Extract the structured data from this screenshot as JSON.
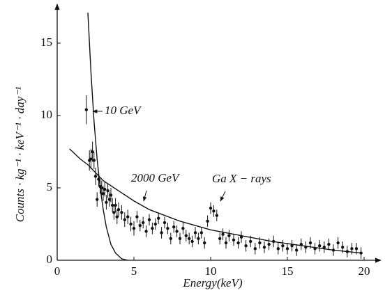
{
  "chart_data": {
    "type": "scatter",
    "x_label": "Energy(keV)",
    "y_label": "Counts · kg⁻¹ · keV⁻¹ · day⁻¹",
    "xlim": [
      0,
      21
    ],
    "ylim": [
      0,
      17.5
    ],
    "xticks": [
      0,
      5,
      10,
      15,
      20
    ],
    "yticks": [
      0,
      5,
      10,
      15
    ],
    "color": "#111111",
    "points": {
      "x": [
        1.9,
        2.1,
        2.2,
        2.3,
        2.4,
        2.5,
        2.6,
        2.7,
        2.8,
        2.9,
        3.0,
        3.1,
        3.2,
        3.3,
        3.4,
        3.5,
        3.6,
        3.7,
        3.8,
        3.9,
        4.0,
        4.2,
        4.4,
        4.6,
        4.8,
        5.0,
        5.2,
        5.4,
        5.6,
        5.8,
        6.0,
        6.2,
        6.4,
        6.6,
        6.8,
        7.0,
        7.2,
        7.4,
        7.6,
        7.8,
        8.0,
        8.2,
        8.4,
        8.6,
        8.8,
        9.0,
        9.2,
        9.4,
        9.6,
        9.8,
        10.0,
        10.2,
        10.4,
        10.6,
        10.8,
        11.0,
        11.2,
        11.5,
        11.8,
        12.0,
        12.3,
        12.6,
        12.9,
        13.2,
        13.5,
        13.8,
        14.1,
        14.4,
        14.7,
        15.0,
        15.3,
        15.6,
        15.9,
        16.2,
        16.5,
        16.8,
        17.1,
        17.4,
        17.7,
        18.0,
        18.3,
        18.6,
        18.9,
        19.2,
        19.5,
        19.8
      ],
      "values": [
        10.4,
        6.9,
        7.0,
        7.5,
        6.9,
        5.8,
        4.2,
        5.6,
        5.1,
        5.0,
        4.6,
        4.9,
        4.0,
        4.8,
        4.2,
        4.5,
        3.8,
        3.3,
        3.8,
        3.0,
        3.5,
        3.3,
        2.8,
        3.0,
        2.5,
        2.2,
        3.0,
        2.4,
        2.6,
        2.0,
        2.8,
        2.2,
        2.5,
        2.9,
        1.9,
        2.6,
        2.2,
        1.5,
        2.3,
        2.0,
        1.5,
        2.2,
        1.7,
        1.5,
        1.3,
        1.9,
        1.5,
        1.9,
        1.2,
        2.7,
        3.6,
        3.4,
        3.1,
        1.5,
        1.8,
        1.2,
        1.7,
        1.4,
        1.2,
        1.6,
        1.0,
        1.3,
        0.8,
        1.2,
        0.9,
        1.1,
        1.3,
        0.8,
        1.0,
        0.8,
        1.0,
        0.7,
        1.1,
        0.9,
        1.2,
        0.8,
        1.0,
        0.9,
        1.1,
        0.7,
        1.2,
        0.9,
        0.6,
        0.8,
        0.8,
        0.5
      ],
      "errors": [
        1.0,
        0.7,
        0.7,
        0.7,
        0.6,
        0.6,
        0.5,
        0.5,
        0.5,
        0.5,
        0.5,
        0.5,
        0.5,
        0.5,
        0.5,
        0.5,
        0.5,
        0.5,
        0.5,
        0.5,
        0.5,
        0.5,
        0.5,
        0.5,
        0.5,
        0.5,
        0.4,
        0.4,
        0.4,
        0.4,
        0.4,
        0.4,
        0.4,
        0.4,
        0.4,
        0.4,
        0.4,
        0.4,
        0.4,
        0.4,
        0.4,
        0.4,
        0.4,
        0.4,
        0.4,
        0.4,
        0.4,
        0.4,
        0.4,
        0.4,
        0.4,
        0.4,
        0.4,
        0.4,
        0.4,
        0.4,
        0.4,
        0.4,
        0.4,
        0.4,
        0.4,
        0.4,
        0.4,
        0.4,
        0.4,
        0.4,
        0.4,
        0.4,
        0.4,
        0.4,
        0.4,
        0.4,
        0.4,
        0.4,
        0.4,
        0.4,
        0.4,
        0.4,
        0.4,
        0.4,
        0.4,
        0.4,
        0.4,
        0.4,
        0.4,
        0.4
      ]
    },
    "curves": [
      {
        "label": "10 GeV",
        "x": [
          2.0,
          2.2,
          2.4,
          2.6,
          2.8,
          3.0,
          3.2,
          3.5,
          3.8,
          4.2,
          4.6
        ],
        "values": [
          17.1,
          13.0,
          9.6,
          7.0,
          5.0,
          3.5,
          2.3,
          1.1,
          0.5,
          0.1,
          0.0
        ]
      },
      {
        "label": "2000 GeV",
        "x": [
          0.8,
          1.5,
          2,
          3,
          4,
          5,
          6,
          8,
          10,
          12,
          14,
          16,
          18,
          19.8
        ],
        "values": [
          7.7,
          7.0,
          6.6,
          5.5,
          4.8,
          4.1,
          3.5,
          2.7,
          2.1,
          1.7,
          1.3,
          1.0,
          0.7,
          0.5
        ]
      }
    ],
    "annotations": [
      "Ga X − rays"
    ]
  }
}
